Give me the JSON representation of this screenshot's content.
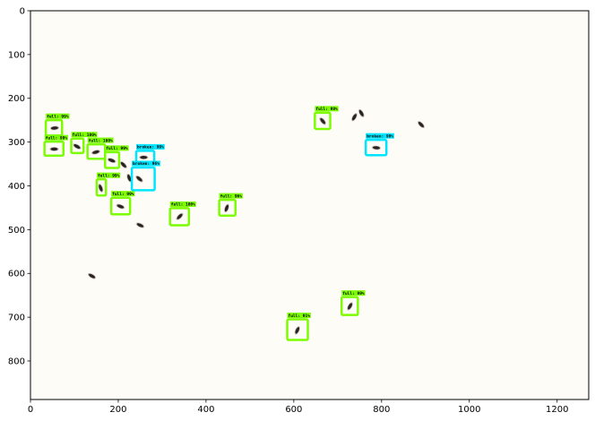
{
  "colors": {
    "background": "#fdfcf6",
    "full_box": "#7cfc00",
    "broken_box": "#00e5ff",
    "grain_dark": "#2b2320",
    "grain_light": "#9b8f86",
    "axis": "#000000"
  },
  "axes": {
    "x_ticks": [
      "0",
      "200",
      "400",
      "600",
      "800",
      "1000",
      "1200"
    ],
    "y_ticks": [
      "0",
      "100",
      "200",
      "300",
      "400",
      "500",
      "600",
      "700",
      "800"
    ],
    "xlim": [
      0,
      1272
    ],
    "ylim": [
      888,
      0
    ]
  },
  "detections": [
    {
      "label": "full: 99%",
      "class": "full",
      "x1": 35,
      "y1": 250,
      "x2": 72,
      "y2": 285
    },
    {
      "label": "full: 99%",
      "class": "full",
      "x1": 32,
      "y1": 299,
      "x2": 75,
      "y2": 331
    },
    {
      "label": "full: 100%",
      "class": "full",
      "x1": 93,
      "y1": 292,
      "x2": 121,
      "y2": 325
    },
    {
      "label": "full: 100%",
      "class": "full",
      "x1": 130,
      "y1": 305,
      "x2": 170,
      "y2": 338
    },
    {
      "label": "full: 99%",
      "class": "full",
      "x1": 170,
      "y1": 323,
      "x2": 202,
      "y2": 359
    },
    {
      "label": "full: 99%",
      "class": "full",
      "x1": 151,
      "y1": 385,
      "x2": 172,
      "y2": 422
    },
    {
      "label": "full: 99%",
      "class": "full",
      "x1": 184,
      "y1": 427,
      "x2": 227,
      "y2": 465
    },
    {
      "label": "full: 100%",
      "class": "full",
      "x1": 318,
      "y1": 451,
      "x2": 361,
      "y2": 490
    },
    {
      "label": "full: 96%",
      "class": "full",
      "x1": 430,
      "y1": 432,
      "x2": 467,
      "y2": 468
    },
    {
      "label": "full: 98%",
      "class": "full",
      "x1": 648,
      "y1": 233,
      "x2": 683,
      "y2": 270
    },
    {
      "label": "full: 99%",
      "class": "full",
      "x1": 709,
      "y1": 654,
      "x2": 746,
      "y2": 695
    },
    {
      "label": "full: 91%",
      "class": "full",
      "x1": 585,
      "y1": 705,
      "x2": 632,
      "y2": 752
    },
    {
      "label": "broken: 99%",
      "class": "broken",
      "x1": 241,
      "y1": 320,
      "x2": 282,
      "y2": 348
    },
    {
      "label": "broken: 96%",
      "class": "broken",
      "x1": 231,
      "y1": 358,
      "x2": 283,
      "y2": 410
    },
    {
      "label": "broken: 99%",
      "class": "broken",
      "x1": 764,
      "y1": 295,
      "x2": 811,
      "y2": 330
    }
  ],
  "grains": [
    {
      "x": 55,
      "y": 268,
      "angle": -5
    },
    {
      "x": 54,
      "y": 316,
      "angle": 0
    },
    {
      "x": 106,
      "y": 310,
      "angle": 30
    },
    {
      "x": 149,
      "y": 323,
      "angle": -15
    },
    {
      "x": 185,
      "y": 342,
      "angle": 20
    },
    {
      "x": 212,
      "y": 352,
      "angle": 45
    },
    {
      "x": 225,
      "y": 382,
      "angle": 70
    },
    {
      "x": 160,
      "y": 405,
      "angle": 70
    },
    {
      "x": 205,
      "y": 447,
      "angle": 20
    },
    {
      "x": 248,
      "y": 384,
      "angle": 40
    },
    {
      "x": 258,
      "y": 335,
      "angle": 0
    },
    {
      "x": 340,
      "y": 470,
      "angle": -45
    },
    {
      "x": 447,
      "y": 451,
      "angle": -70
    },
    {
      "x": 250,
      "y": 490,
      "angle": 25
    },
    {
      "x": 140,
      "y": 606,
      "angle": 30
    },
    {
      "x": 666,
      "y": 252,
      "angle": 50
    },
    {
      "x": 728,
      "y": 675,
      "angle": -60
    },
    {
      "x": 608,
      "y": 730,
      "angle": -65
    },
    {
      "x": 788,
      "y": 313,
      "angle": 5
    },
    {
      "x": 738,
      "y": 243,
      "angle": -60
    },
    {
      "x": 754,
      "y": 234,
      "angle": 60
    },
    {
      "x": 890,
      "y": 260,
      "angle": 45
    }
  ]
}
